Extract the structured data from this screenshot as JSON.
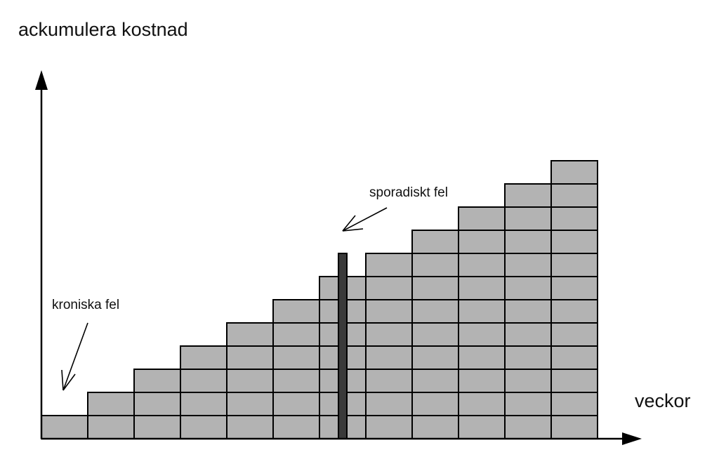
{
  "labels": {
    "y_axis": "ackumulera kostnad",
    "x_axis": "veckor",
    "chronic": "kroniska fel",
    "sporadic": "sporadiskt fel"
  },
  "colors": {
    "block_fill": "#b3b3b3",
    "stroke": "#000000",
    "spike_fill": "#3a3a3a"
  },
  "icons": {
    "chronic_arrow": "open-arrow-icon",
    "sporadic_arrow": "open-arrow-icon",
    "axis_arrows": "filled-triangle-arrow-icon"
  },
  "diagram": {
    "column_heights": [
      1,
      2,
      3,
      4,
      5,
      6,
      7,
      8,
      9,
      10,
      11,
      12
    ],
    "sporadic_spike_week": 7
  }
}
